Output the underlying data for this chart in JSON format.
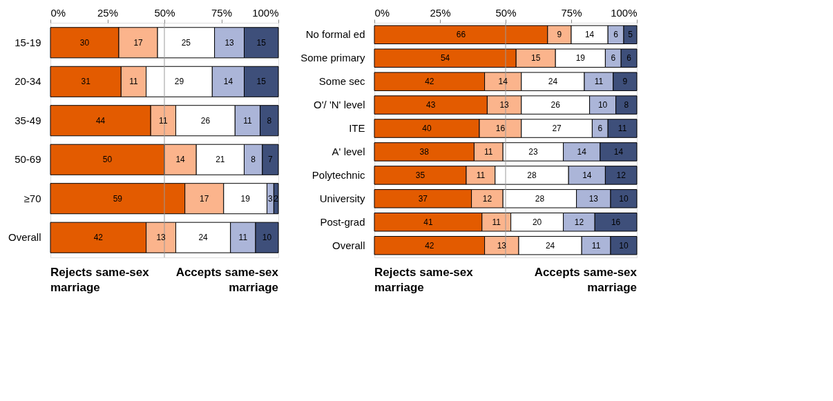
{
  "chart_data": [
    {
      "type": "bar",
      "orientation": "horizontal",
      "stacked": true,
      "data_labels": true,
      "grid": false,
      "legend": false,
      "categories": [
        "15-19",
        "20-34",
        "35-49",
        "50-69",
        "≥70",
        "Overall"
      ],
      "series": [
        {
          "color": "#e35b00",
          "values": [
            30,
            31,
            44,
            50,
            59,
            42
          ]
        },
        {
          "color": "#fbb48c",
          "values": [
            17,
            11,
            11,
            14,
            17,
            13
          ]
        },
        {
          "color": "#ffffff",
          "values": [
            25,
            29,
            26,
            21,
            19,
            24
          ]
        },
        {
          "color": "#abb5d8",
          "values": [
            13,
            14,
            11,
            8,
            3,
            11
          ]
        },
        {
          "color": "#3e4f7a",
          "values": [
            15,
            15,
            8,
            7,
            2,
            10
          ]
        }
      ],
      "xlim": [
        0,
        100
      ],
      "xticks": [
        {
          "value": 0,
          "label": "0%"
        },
        {
          "value": 25,
          "label": "25%"
        },
        {
          "value": 50,
          "label": "50%"
        },
        {
          "value": 75,
          "label": "75%"
        },
        {
          "value": 100,
          "label": "100%"
        }
      ],
      "ref_lines": [
        {
          "axis": "x",
          "value": 50,
          "color": "#999999"
        }
      ],
      "annotations": [
        "Rejects same-sex marriage",
        "Accepts same-sex marriage"
      ]
    },
    {
      "type": "bar",
      "orientation": "horizontal",
      "stacked": true,
      "data_labels": true,
      "grid": false,
      "legend": false,
      "categories": [
        "No formal ed",
        "Some primary",
        "Some sec",
        "O'/ 'N' level",
        "ITE",
        "A' level",
        "Polytechnic",
        "University",
        "Post-grad",
        "Overall"
      ],
      "series": [
        {
          "color": "#e35b00",
          "values": [
            66,
            54,
            42,
            43,
            40,
            38,
            35,
            37,
            41,
            42
          ]
        },
        {
          "color": "#fbb48c",
          "values": [
            9,
            15,
            14,
            13,
            16,
            11,
            11,
            12,
            11,
            13
          ]
        },
        {
          "color": "#ffffff",
          "values": [
            14,
            19,
            24,
            26,
            27,
            23,
            28,
            28,
            20,
            24
          ]
        },
        {
          "color": "#abb5d8",
          "values": [
            6,
            6,
            11,
            10,
            6,
            14,
            14,
            13,
            12,
            11
          ]
        },
        {
          "color": "#3e4f7a",
          "values": [
            5,
            6,
            9,
            8,
            11,
            14,
            12,
            10,
            16,
            10
          ]
        }
      ],
      "xlim": [
        0,
        100
      ],
      "xticks": [
        {
          "value": 0,
          "label": "0%"
        },
        {
          "value": 25,
          "label": "25%"
        },
        {
          "value": 50,
          "label": "50%"
        },
        {
          "value": 75,
          "label": "75%"
        },
        {
          "value": 100,
          "label": "100%"
        }
      ],
      "ref_lines": [
        {
          "axis": "x",
          "value": 50,
          "color": "#999999"
        }
      ],
      "annotations": [
        "Rejects same-sex marriage",
        "Accepts same-sex marriage"
      ]
    }
  ]
}
